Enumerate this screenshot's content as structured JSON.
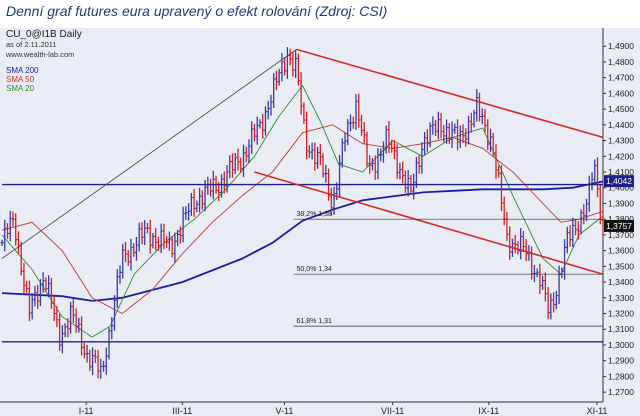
{
  "title": "Denní graf futures eura upravený o efekt rolování (Zdroj: CSI)",
  "info": {
    "symbol": "CU_0@I1B Daily",
    "date": "as of 2.11.2011",
    "site": "www.wealth-lab.com"
  },
  "colors": {
    "bg": "#e9ecf5",
    "up_bar": "#3a3aa6",
    "down_bar": "#d42020",
    "sma200": "#1c1ca8",
    "sma50": "#c0392b",
    "sma20": "#2e8b2e",
    "channel": "#d42a2a",
    "hline": "#1f1f8a",
    "fib": "#333333"
  },
  "chart_data": {
    "type": "ohlc",
    "title": "Denní graf futures eura upravený o efekt rolování (Zdroj: CSI)",
    "legend": [
      {
        "name": "SMA 200",
        "color": "#1c1ca8"
      },
      {
        "name": "SMA 50",
        "color": "#c0392b"
      },
      {
        "name": "SMA 20",
        "color": "#2e8b2e"
      }
    ],
    "x_tick_labels": [
      "I-11",
      "III-11",
      "V-11",
      "VII-11",
      "IX-11",
      "XI-11"
    ],
    "y_tick_labels": [
      "1,4900",
      "1,4800",
      "1,4700",
      "1,4600",
      "1,4500",
      "1,4400",
      "1,4300",
      "1,4200",
      "1,4100",
      "1,4000",
      "1,3900",
      "1,3800",
      "1,3700",
      "1,3600",
      "1,3500",
      "1,3400",
      "1,3300",
      "1,3200",
      "1,3100",
      "1,3000",
      "1,2900",
      "1,2800",
      "1,2700"
    ],
    "ylim": [
      1.265,
      1.4965
    ],
    "y_axis_side": "right",
    "grid": false,
    "price_path": [
      {
        "t": 0.0,
        "p": 1.365
      },
      {
        "t": 0.02,
        "p": 1.38
      },
      {
        "t": 0.045,
        "p": 1.32
      },
      {
        "t": 0.07,
        "p": 1.345
      },
      {
        "t": 0.095,
        "p": 1.305
      },
      {
        "t": 0.115,
        "p": 1.32
      },
      {
        "t": 0.14,
        "p": 1.295
      },
      {
        "t": 0.155,
        "p": 1.288
      },
      {
        "t": 0.165,
        "p": 1.28
      },
      {
        "t": 0.2,
        "p": 1.355
      },
      {
        "t": 0.24,
        "p": 1.372
      },
      {
        "t": 0.28,
        "p": 1.362
      },
      {
        "t": 0.32,
        "p": 1.392
      },
      {
        "t": 0.36,
        "p": 1.402
      },
      {
        "t": 0.4,
        "p": 1.42
      },
      {
        "t": 0.43,
        "p": 1.44
      },
      {
        "t": 0.455,
        "p": 1.465
      },
      {
        "t": 0.475,
        "p": 1.486
      },
      {
        "t": 0.49,
        "p": 1.475
      },
      {
        "t": 0.505,
        "p": 1.43
      },
      {
        "t": 0.53,
        "p": 1.415
      },
      {
        "t": 0.55,
        "p": 1.39
      },
      {
        "t": 0.57,
        "p": 1.43
      },
      {
        "t": 0.59,
        "p": 1.455
      },
      {
        "t": 0.61,
        "p": 1.41
      },
      {
        "t": 0.64,
        "p": 1.43
      },
      {
        "t": 0.66,
        "p": 1.415
      },
      {
        "t": 0.68,
        "p": 1.395
      },
      {
        "t": 0.7,
        "p": 1.43
      },
      {
        "t": 0.73,
        "p": 1.44
      },
      {
        "t": 0.76,
        "p": 1.43
      },
      {
        "t": 0.79,
        "p": 1.45
      },
      {
        "t": 0.815,
        "p": 1.43
      },
      {
        "t": 0.84,
        "p": 1.368
      },
      {
        "t": 0.87,
        "p": 1.36
      },
      {
        "t": 0.895,
        "p": 1.342
      },
      {
        "t": 0.91,
        "p": 1.32
      },
      {
        "t": 0.925,
        "p": 1.34
      },
      {
        "t": 0.94,
        "p": 1.365
      },
      {
        "t": 0.96,
        "p": 1.38
      },
      {
        "t": 0.975,
        "p": 1.39
      },
      {
        "t": 0.985,
        "p": 1.415
      },
      {
        "t": 1.0,
        "p": 1.375
      }
    ],
    "moving_averages": [
      {
        "name": "SMA 200",
        "points": [
          [
            0.0,
            1.333
          ],
          [
            0.1,
            1.331
          ],
          [
            0.15,
            1.328
          ],
          [
            0.2,
            1.33
          ],
          [
            0.3,
            1.34
          ],
          [
            0.4,
            1.355
          ],
          [
            0.45,
            1.365
          ],
          [
            0.5,
            1.379
          ],
          [
            0.55,
            1.386
          ],
          [
            0.6,
            1.392
          ],
          [
            0.7,
            1.397
          ],
          [
            0.8,
            1.399
          ],
          [
            0.9,
            1.399
          ],
          [
            0.95,
            1.4
          ],
          [
            1.0,
            1.404
          ]
        ]
      },
      {
        "name": "SMA 50",
        "points": [
          [
            0.0,
            1.373
          ],
          [
            0.05,
            1.378
          ],
          [
            0.1,
            1.36
          ],
          [
            0.15,
            1.33
          ],
          [
            0.2,
            1.32
          ],
          [
            0.25,
            1.335
          ],
          [
            0.3,
            1.358
          ],
          [
            0.35,
            1.378
          ],
          [
            0.4,
            1.395
          ],
          [
            0.45,
            1.41
          ],
          [
            0.5,
            1.435
          ],
          [
            0.55,
            1.44
          ],
          [
            0.6,
            1.428
          ],
          [
            0.65,
            1.425
          ],
          [
            0.7,
            1.428
          ],
          [
            0.75,
            1.432
          ],
          [
            0.8,
            1.425
          ],
          [
            0.85,
            1.41
          ],
          [
            0.9,
            1.39
          ],
          [
            0.93,
            1.378
          ],
          [
            0.96,
            1.38
          ],
          [
            1.0,
            1.385
          ]
        ]
      },
      {
        "name": "SMA 20",
        "points": [
          [
            0.0,
            1.37
          ],
          [
            0.05,
            1.348
          ],
          [
            0.1,
            1.318
          ],
          [
            0.15,
            1.305
          ],
          [
            0.18,
            1.312
          ],
          [
            0.22,
            1.345
          ],
          [
            0.27,
            1.365
          ],
          [
            0.32,
            1.38
          ],
          [
            0.37,
            1.398
          ],
          [
            0.42,
            1.42
          ],
          [
            0.46,
            1.445
          ],
          [
            0.5,
            1.465
          ],
          [
            0.53,
            1.442
          ],
          [
            0.56,
            1.415
          ],
          [
            0.6,
            1.41
          ],
          [
            0.65,
            1.43
          ],
          [
            0.7,
            1.42
          ],
          [
            0.75,
            1.432
          ],
          [
            0.8,
            1.438
          ],
          [
            0.85,
            1.395
          ],
          [
            0.9,
            1.355
          ],
          [
            0.93,
            1.345
          ],
          [
            0.96,
            1.37
          ],
          [
            1.0,
            1.382
          ]
        ]
      }
    ],
    "channel_upper": [
      [
        0.49,
        1.488
      ],
      [
        1.0,
        1.432
      ]
    ],
    "channel_lower": [
      [
        0.42,
        1.41
      ],
      [
        1.0,
        1.345
      ]
    ],
    "trend_line": [
      [
        0.0,
        1.355
      ],
      [
        0.49,
        1.488
      ]
    ],
    "horizontal_lines": [
      1.402,
      1.302
    ],
    "fibonacci": [
      {
        "label": "38,2% 1,38",
        "value": 1.38
      },
      {
        "label": "50,0% 1,34",
        "value": 1.345
      },
      {
        "label": "61,8% 1,31",
        "value": 1.312
      }
    ],
    "price_flags": [
      {
        "label": "1,4042",
        "value": 1.4042,
        "color": "#1f1f8a"
      },
      {
        "label": "1,3757",
        "value": 1.3757,
        "color": "#111111"
      }
    ]
  }
}
